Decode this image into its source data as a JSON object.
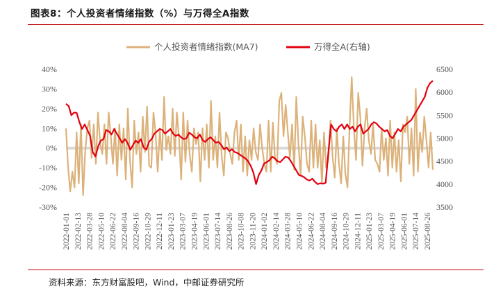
{
  "title": "图表8：个人投资者情绪指数（%）与万得全A指数",
  "source": "资料来源：东方财富股吧，Wind，中邮证券研究所",
  "colors": {
    "sentiment": "#dcb27a",
    "index": "#e3000f",
    "zero_line": "#d9d9d9",
    "accent_rule": "#c00000"
  },
  "chart_data": {
    "type": "line",
    "left_axis": {
      "min": -30,
      "max": 40,
      "step": 10,
      "tick_labels": [
        "-30%",
        "-20%",
        "-10%",
        "0%",
        "10%",
        "20%",
        "30%",
        "40%"
      ]
    },
    "right_axis": {
      "min": 3500,
      "max": 6500,
      "step": 500,
      "tick_labels": [
        "3500",
        "4000",
        "4500",
        "5000",
        "5500",
        "6000",
        "6500"
      ]
    },
    "x_labels": [
      "2022-01-01",
      "2022-02-13",
      "2022-03-28",
      "2022-05-10",
      "2022-06-22",
      "2022-08-04",
      "2022-09-16",
      "2022-10-29",
      "2022-12-11",
      "2023-01-23",
      "2023-03-07",
      "2023-04-19",
      "2023-06-01",
      "2023-07-14",
      "2023-08-26",
      "2023-10-08",
      "2023-11-20",
      "2024-01-02",
      "2024-02-14",
      "2024-03-28",
      "2024-05-10",
      "2024-06-22",
      "2024-08-04",
      "2024-09-16",
      "2024-10-29",
      "2024-12-11",
      "2025-01-23",
      "2025-03-07",
      "2025-04-19",
      "2025-06-01",
      "2025-07-14",
      "2025-08-26"
    ],
    "series": [
      {
        "name": "个人投资者情绪指数(MA7)",
        "axis": "left",
        "values": [
          10,
          -10,
          -22,
          -12,
          -20,
          8,
          -18,
          12,
          -24,
          -2,
          10,
          14,
          -5,
          12,
          -8,
          18,
          3,
          -3,
          12,
          -8,
          18,
          6,
          -8,
          10,
          -14,
          12,
          -6,
          10,
          -16,
          20,
          -6,
          -20,
          14,
          -3,
          8,
          -12,
          16,
          -2,
          21,
          -9,
          -10,
          18,
          8,
          -12,
          10,
          -6,
          26,
          -1,
          6,
          -3,
          20,
          -4,
          18,
          5,
          -16,
          18,
          -7,
          14,
          -3,
          -12,
          10,
          2,
          8,
          -17,
          10,
          -6,
          12,
          -10,
          24,
          -6,
          6,
          -10,
          18,
          -4,
          -14,
          8,
          5,
          -3,
          -8,
          8,
          14,
          -6,
          12,
          -12,
          6,
          -14,
          4,
          -6,
          10,
          -2,
          -6,
          12,
          0,
          -8,
          -12,
          14,
          -12,
          13,
          -5,
          -8,
          24,
          28,
          6,
          22,
          8,
          -5,
          12,
          -11,
          26,
          2,
          -14,
          16,
          6,
          -8,
          -12,
          14,
          -10,
          12,
          -10,
          4,
          -18,
          8,
          -10,
          -6,
          14,
          -4,
          -15,
          10,
          -8,
          -18,
          6,
          -13,
          -20,
          12,
          36,
          10,
          -6,
          28,
          16,
          -9,
          10,
          20,
          4,
          -3,
          12,
          -6,
          -8,
          -12,
          10,
          -6,
          5,
          -14,
          14,
          -10,
          8,
          -12,
          4,
          -17,
          12,
          8,
          16,
          -8,
          10,
          -14,
          30,
          -12,
          8,
          -2,
          16,
          4,
          -10,
          8,
          -11
        ]
      },
      {
        "name": "万得全A(右轴)",
        "axis": "right",
        "values": [
          5750,
          5700,
          5500,
          5560,
          5550,
          5350,
          5200,
          5300,
          5180,
          5050,
          4700,
          4600,
          4820,
          4950,
          4980,
          5180,
          5150,
          5080,
          5200,
          5100,
          5000,
          4900,
          4980,
          4900,
          4750,
          4850,
          4950,
          4900,
          4980,
          4800,
          4750,
          4920,
          4980,
          5100,
          5150,
          5200,
          5180,
          5100,
          5150,
          5200,
          5100,
          5050,
          5080,
          5020,
          4980,
          5000,
          5120,
          5080,
          5020,
          5000,
          5080,
          4960,
          4920,
          4980,
          5020,
          4960,
          4900,
          4920,
          4850,
          4760,
          4800,
          4720,
          4760,
          4700,
          4680,
          4640,
          4600,
          4560,
          4500,
          4400,
          4250,
          4000,
          4200,
          4300,
          4450,
          4480,
          4520,
          4600,
          4560,
          4500,
          4480,
          4540,
          4600,
          4580,
          4500,
          4400,
          4300,
          4200,
          4180,
          4150,
          4100,
          4080,
          4120,
          4050,
          4000,
          4020,
          4010,
          4030,
          4700,
          5300,
          5200,
          5150,
          5250,
          5300,
          5200,
          5300,
          5200,
          5250,
          5150,
          5250,
          5300,
          5100,
          5150,
          5200,
          5300,
          5350,
          5320,
          5250,
          5200,
          5150,
          5180,
          5050,
          5000,
          5100,
          5200,
          5150,
          5250,
          5300,
          5350,
          5400,
          5500,
          5600,
          5700,
          5800,
          5900,
          6100,
          6200,
          6250
        ]
      }
    ],
    "legend_placement": "top-center",
    "grid": false
  }
}
